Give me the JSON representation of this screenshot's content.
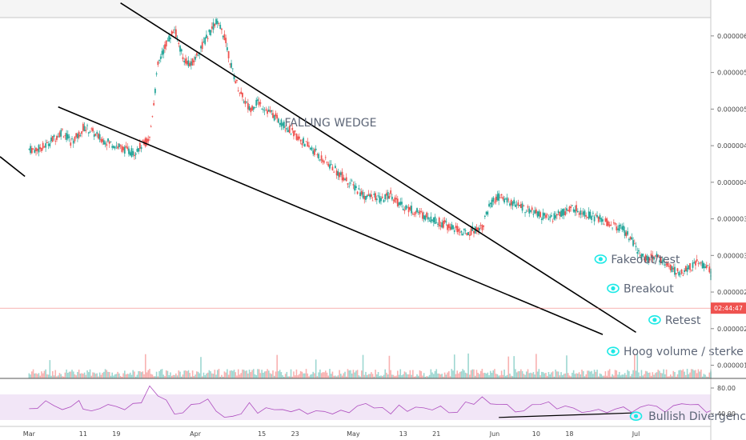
{
  "chart_data": {
    "type": "candlestick",
    "title": "FALLING WEDGE",
    "y_ticks": [
      "0.00000600",
      "0.00000550",
      "0.00000500",
      "0.00000450",
      "0.00000400",
      "0.00000350",
      "0.00000300",
      "0.00000250",
      "0.00000200",
      "0.00000150"
    ],
    "y_tick_values": [
      6.0,
      5.5,
      5.0,
      4.5,
      4.0,
      3.5,
      3.0,
      2.5,
      2.0,
      1.5
    ],
    "ylim": [
      1.32,
      6.25
    ],
    "x_ticks": [
      "Mar",
      "11",
      "19",
      "Apr",
      "15",
      "23",
      "May",
      "13",
      "21",
      "Jun",
      "10",
      "18",
      "Jul"
    ],
    "x_tick_index": [
      0,
      13,
      21,
      40,
      56,
      64,
      78,
      90,
      98,
      112,
      122,
      130,
      146
    ],
    "x_range": [
      -7,
      164
    ],
    "current_price_label": "02:44:47",
    "current_price": 2.28,
    "closes": [
      4.45,
      4.5,
      4.6,
      4.7,
      4.55,
      4.65,
      4.75,
      4.7,
      4.6,
      4.55,
      4.5,
      4.45,
      4.4,
      4.5,
      4.6,
      5.6,
      5.9,
      6.1,
      5.7,
      5.6,
      5.8,
      6.0,
      6.2,
      6.0,
      5.5,
      5.2,
      5.0,
      5.1,
      5.0,
      4.9,
      4.8,
      4.7,
      4.6,
      4.5,
      4.4,
      4.3,
      4.2,
      4.1,
      4.0,
      3.9,
      3.8,
      3.8,
      3.75,
      3.85,
      3.7,
      3.65,
      3.6,
      3.55,
      3.5,
      3.45,
      3.4,
      3.35,
      3.3,
      3.35,
      3.4,
      3.7,
      3.8,
      3.75,
      3.7,
      3.65,
      3.6,
      3.55,
      3.5,
      3.55,
      3.6,
      3.65,
      3.6,
      3.55,
      3.5,
      3.45,
      3.4,
      3.35,
      3.2,
      3.0,
      2.95,
      3.0,
      2.9,
      2.8,
      2.75,
      2.85,
      2.9,
      2.85,
      2.8,
      2.75,
      2.7,
      2.65,
      2.6,
      2.55,
      2.45,
      2.35,
      2.3,
      2.25,
      2.2,
      2.0,
      2.1,
      2.25,
      2.3,
      2.28,
      2.35
    ],
    "close_x_index": [
      0,
      2,
      4,
      6,
      8,
      10,
      12,
      13,
      15,
      17,
      19,
      21,
      23,
      25,
      27,
      29,
      31,
      33,
      35,
      37,
      39,
      41,
      43,
      45,
      47,
      49,
      51,
      53,
      55,
      57,
      59,
      61,
      63,
      65,
      67,
      69,
      71,
      73,
      75,
      77,
      79,
      81,
      83,
      85,
      87,
      89,
      91,
      93,
      95,
      97,
      99,
      101,
      103,
      105,
      107,
      109,
      111,
      113,
      115,
      117,
      119,
      121,
      123,
      125,
      127,
      129,
      131,
      133,
      135,
      137,
      139,
      141,
      143,
      145,
      147,
      149,
      151,
      153,
      155,
      157,
      159,
      161,
      163,
      164,
      164,
      164,
      164,
      164,
      164,
      164,
      164,
      164,
      164,
      164,
      164,
      164,
      164,
      164,
      164
    ],
    "rsi": {
      "ylim": [
        20,
        90
      ],
      "ticks": [
        "80.00",
        "40.00"
      ],
      "tick_values": [
        80,
        40
      ],
      "band": [
        30,
        70
      ]
    },
    "annotations": {
      "wedge_label": "FALLING WEDGE",
      "fakeout": "Fakeout/test",
      "breakout": "Breakout",
      "retest": "Retest",
      "volume": "Hoog volume / sterke reactie",
      "divergence": "Bullish Divergence"
    },
    "colors": {
      "up": "#26a69a",
      "down": "#ef5350",
      "rsi_line": "#9c27b0",
      "rsi_band": "#f2e6f7",
      "line": "#000000",
      "eye": "#1de9e6",
      "price_tag": "#ef5350"
    }
  }
}
